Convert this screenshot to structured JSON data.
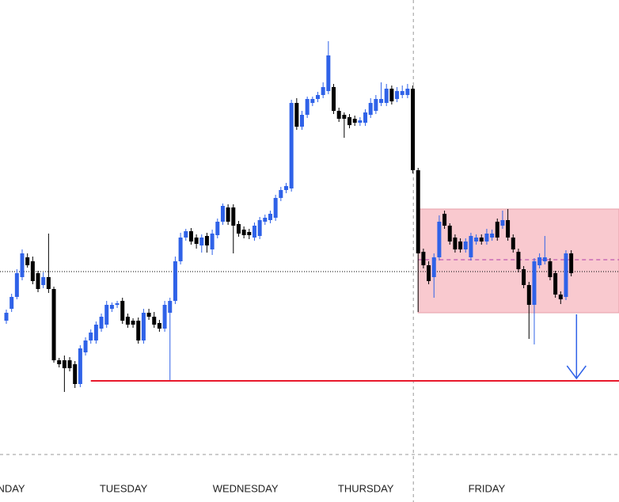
{
  "chart_data": {
    "type": "candlestick",
    "up_color": "#2f62e8",
    "down_color": "#000000",
    "xlim": [
      -1.2,
      116.05
    ],
    "ylim": [
      0,
      634
    ],
    "xticks": [
      {
        "value": 0.9,
        "label": "NDAY"
      },
      {
        "value": 22.2,
        "label": "TUESDAY"
      },
      {
        "value": 45.3,
        "label": "WEDNESDAY"
      },
      {
        "value": 68.1,
        "label": "THURSDAY"
      },
      {
        "value": 91.0,
        "label": "FRIDAY"
      }
    ],
    "open": [
      229,
      244,
      259,
      284,
      309,
      304,
      289,
      274,
      284,
      269,
      179,
      179,
      179,
      174,
      149,
      189,
      204,
      204,
      219,
      224,
      244,
      249,
      254,
      234,
      229,
      229,
      204,
      239,
      234,
      226,
      219,
      239,
      254,
      304,
      334,
      342,
      334,
      324,
      336,
      319,
      337,
      354,
      372,
      372,
      351,
      344,
      341,
      334,
      336,
      354,
      356,
      359,
      384,
      394,
      396,
      504,
      474,
      489,
      504,
      509,
      514,
      519,
      524,
      494,
      489,
      486,
      484,
      479,
      479,
      489,
      494,
      504,
      504,
      522,
      509,
      514,
      514,
      522,
      419,
      316,
      299,
      284,
      309,
      364,
      349,
      334,
      329,
      319,
      309,
      329,
      334,
      329,
      334,
      354,
      349,
      356,
      334,
      316,
      294,
      274,
      249,
      299,
      304,
      304,
      289,
      262,
      259,
      314
    ],
    "high": [
      243,
      263,
      294,
      319,
      314,
      310,
      292,
      290,
      339,
      272,
      182,
      185,
      183,
      178,
      198,
      208,
      218,
      228,
      238,
      254,
      252,
      254,
      258,
      238,
      232,
      233,
      244,
      244,
      240,
      230,
      254,
      258,
      310,
      340,
      345,
      346,
      338,
      338,
      340,
      344,
      358,
      377,
      376,
      376,
      355,
      348,
      345,
      353,
      360,
      363,
      368,
      388,
      398,
      403,
      508,
      510,
      494,
      512,
      512,
      518,
      530,
      582,
      528,
      498,
      492,
      490,
      488,
      486,
      496,
      510,
      514,
      530,
      528,
      526,
      524,
      526,
      528,
      526,
      422,
      320,
      304,
      314,
      362,
      368,
      352,
      338,
      333,
      333,
      340,
      338,
      338,
      345,
      344,
      358,
      368,
      370,
      338,
      320,
      298,
      278,
      308,
      314,
      336,
      308,
      292,
      266,
      318,
      318
    ],
    "low": [
      225,
      240,
      256,
      280,
      296,
      275,
      265,
      270,
      264,
      176,
      170,
      139,
      165,
      144,
      145,
      185,
      200,
      200,
      215,
      220,
      240,
      245,
      225,
      220,
      220,
      200,
      200,
      230,
      220,
      215,
      215,
      154,
      250,
      300,
      330,
      325,
      320,
      315,
      315,
      312,
      333,
      350,
      350,
      314,
      335,
      333,
      332,
      330,
      332,
      350,
      352,
      355,
      380,
      390,
      392,
      470,
      470,
      485,
      500,
      505,
      510,
      515,
      490,
      480,
      460,
      472,
      475,
      475,
      475,
      485,
      490,
      500,
      500,
      502,
      505,
      510,
      510,
      415,
      240,
      295,
      275,
      258,
      305,
      345,
      325,
      315,
      315,
      315,
      305,
      325,
      325,
      325,
      330,
      330,
      345,
      330,
      315,
      290,
      270,
      206,
      199,
      295,
      300,
      280,
      258,
      250,
      255,
      285
    ],
    "close": [
      239,
      259,
      289,
      314,
      299,
      279,
      269,
      284,
      269,
      179,
      174,
      169,
      169,
      149,
      194,
      204,
      214,
      224,
      234,
      249,
      249,
      251,
      229,
      224,
      224,
      204,
      239,
      234,
      224,
      219,
      249,
      254,
      304,
      334,
      342,
      329,
      326,
      334,
      324,
      339,
      354,
      374,
      354,
      349,
      339,
      337,
      337,
      349,
      356,
      359,
      364,
      384,
      394,
      399,
      504,
      474,
      489,
      509,
      509,
      514,
      524,
      564,
      494,
      484,
      484,
      476,
      479,
      482,
      492,
      504,
      509,
      509,
      522,
      506,
      519,
      519,
      522,
      419,
      314,
      299,
      279,
      309,
      354,
      349,
      329,
      319,
      319,
      329,
      336,
      334,
      329,
      339,
      339,
      334,
      356,
      334,
      319,
      294,
      274,
      249,
      304,
      309,
      309,
      284,
      262,
      256,
      314,
      289
    ],
    "box": {
      "from": 78,
      "to": 116.05,
      "top": 370,
      "bottom": 239,
      "color": "#f9c9cf"
    },
    "levels": [
      {
        "value": 291,
        "from": -1.2,
        "color": "#000000",
        "style": "dotted"
      },
      {
        "value": 306,
        "from": 78,
        "color": "#b03aa8",
        "style": "dashed"
      },
      {
        "value": 153,
        "from": 16,
        "color": "#e8192c",
        "style": "solid"
      }
    ],
    "separator": 77.1,
    "arrow": {
      "x": 108,
      "from": 237,
      "to": 156,
      "color": "#2f62e8"
    }
  }
}
